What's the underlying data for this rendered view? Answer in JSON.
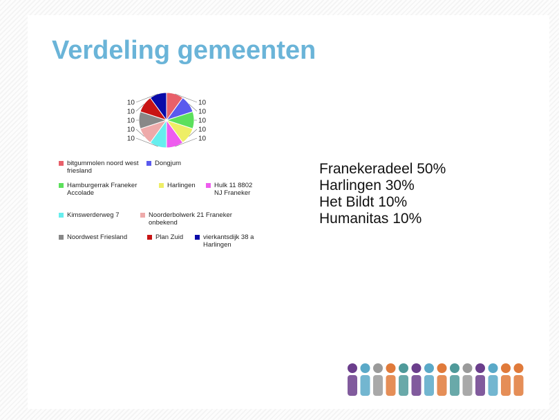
{
  "title": "Verdeling gemeenten",
  "chart_data": {
    "type": "pie",
    "categories": [
      "bitgummolen noord west friesland",
      "Dongjum",
      "Hamburgerrak Franeker Accolade",
      "Harlingen",
      "Hulk 11 8802 NJ Franeker",
      "Kimswerderweg 7",
      "Noorderbolwerk 21 Franeker onbekend",
      "Noordwest Friesland",
      "Plan Zuid",
      "vierkantsdijk 38 a Harlingen"
    ],
    "values": [
      10,
      10,
      10,
      10,
      10,
      10,
      10,
      10,
      10,
      10
    ],
    "colors": [
      "#e8606a",
      "#5a5aee",
      "#5ce05c",
      "#eeee66",
      "#ee5cee",
      "#66eeee",
      "#eeaaaa",
      "#888888",
      "#c81414",
      "#0a0aa8"
    ]
  },
  "notes": [
    "Franekeradeel 50%",
    "Harlingen 30%",
    "Het Bildt 10%",
    "Humanitas 10%"
  ]
}
